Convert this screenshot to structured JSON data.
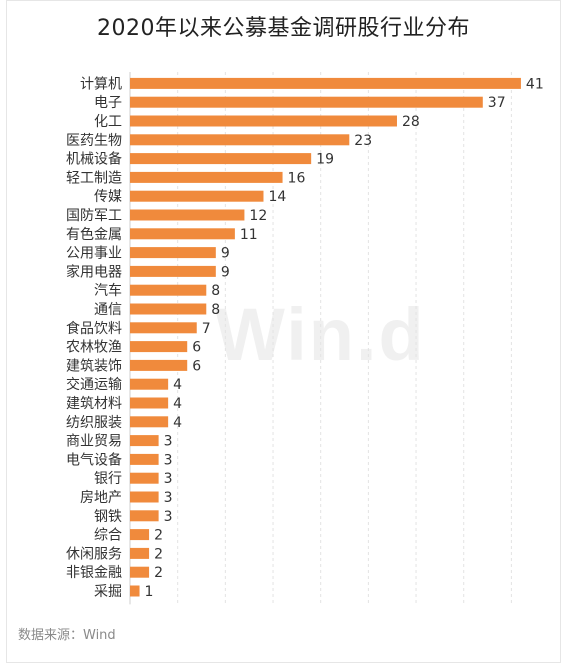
{
  "chart_data": {
    "type": "bar",
    "orientation": "horizontal",
    "title": "2020年以来公募基金调研股行业分布",
    "categories": [
      "计算机",
      "电子",
      "化工",
      "医药生物",
      "机械设备",
      "轻工制造",
      "传媒",
      "国防军工",
      "有色金属",
      "公用事业",
      "家用电器",
      "汽车",
      "通信",
      "食品饮料",
      "农林牧渔",
      "建筑装饰",
      "交通运输",
      "建筑材料",
      "纺织服装",
      "商业贸易",
      "电气设备",
      "银行",
      "房地产",
      "钢铁",
      "综合",
      "休闲服务",
      "非银金融",
      "采掘"
    ],
    "values": [
      41,
      37,
      28,
      23,
      19,
      16,
      14,
      12,
      11,
      9,
      9,
      8,
      8,
      7,
      6,
      6,
      4,
      4,
      4,
      3,
      3,
      3,
      3,
      3,
      2,
      2,
      2,
      1
    ],
    "xlim": [
      0,
      43
    ],
    "grid": true,
    "bar_color": "#F08A3C",
    "data_labels": true
  },
  "watermark": "Win.d",
  "source": "数据来源：Wind"
}
